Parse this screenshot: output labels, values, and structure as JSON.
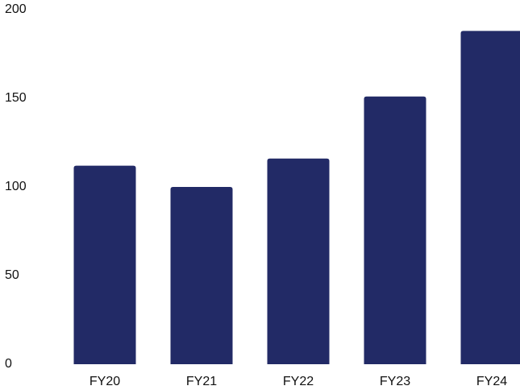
{
  "chart_data": {
    "type": "bar",
    "title": "",
    "xlabel": "",
    "ylabel": "",
    "categories": [
      "FY20",
      "FY21",
      "FY22",
      "FY23",
      "FY24"
    ],
    "values": [
      112,
      100,
      116,
      151,
      188
    ],
    "ylim": [
      0,
      200
    ],
    "yticks": [
      0,
      50,
      100,
      150,
      200
    ],
    "ytick_labels": [
      "0",
      "50",
      "100",
      "150",
      "200"
    ],
    "grid": false,
    "legend": "none",
    "bar_color": "#222a66"
  }
}
